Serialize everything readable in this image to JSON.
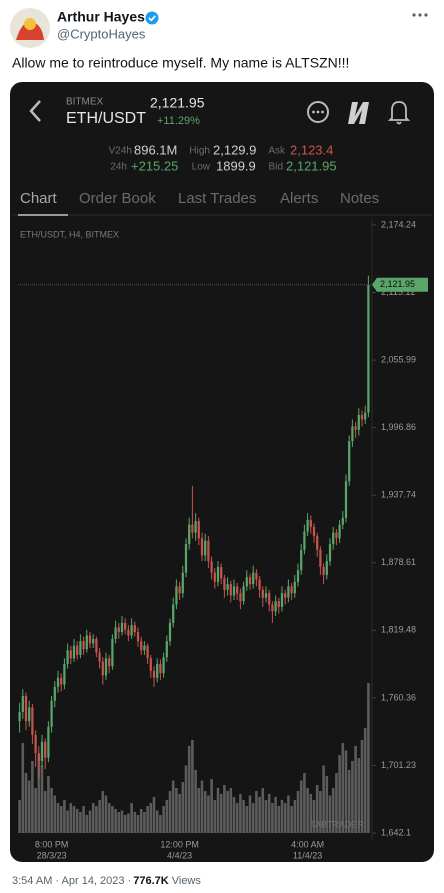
{
  "tweet": {
    "name": "Arthur Hayes",
    "handle": "@CryptoHayes",
    "text": "Allow me to reintroduce myself. My name is ALTSZN!!!",
    "timestamp": "3:54 AM · Apr 14, 2023 · ",
    "views": "776.7K",
    "views_label": "Views"
  },
  "app": {
    "exchange": "BITMEX",
    "pair": "ETH/USDT",
    "price": "2,121.95",
    "change": "+11.29%",
    "stats": {
      "v24h_label": "V24h",
      "v24h": "896.1M",
      "high_label": "High",
      "high": "2,129.9",
      "ask_label": "Ask",
      "ask": "2,123.4",
      "d24h_label": "24h",
      "d24h": "+215.25",
      "low_label": "Low",
      "low": "1899.9",
      "bid_label": "Bid",
      "bid": "2,121.95"
    },
    "tabs": [
      "Chart",
      "Order Book",
      "Last Trades",
      "Alerts",
      "Notes"
    ],
    "watermark": "TABTRADER"
  },
  "chart_data": {
    "type": "candlestick",
    "subtitle": "ETH/USDT, H4, BITMEX",
    "up_color": "#5aa66a",
    "down_color": "#c9544e",
    "volume_color": "#5c5c5c",
    "ylim": [
      1642.1,
      2174.24
    ],
    "yticks": [
      {
        "value": 2174.24,
        "label": "2,174.24"
      },
      {
        "value": 2115.12,
        "label": "2,115.12"
      },
      {
        "value": 2055.99,
        "label": "2,055.99"
      },
      {
        "value": 1996.86,
        "label": "1,996.86"
      },
      {
        "value": 1937.74,
        "label": "1,937.74"
      },
      {
        "value": 1878.61,
        "label": "1,878.61"
      },
      {
        "value": 1819.48,
        "label": "1,819.48"
      },
      {
        "value": 1760.36,
        "label": "1,760.36"
      },
      {
        "value": 1701.23,
        "label": "1,701.23"
      },
      {
        "value": 1642.1,
        "label": "1,642.1"
      }
    ],
    "last_price": {
      "value": 2121.95,
      "label": "2,121.95"
    },
    "categories": [
      null,
      null,
      null,
      null,
      null,
      null,
      null,
      null,
      null,
      null,
      {
        "time": "8:00 PM",
        "date": "28/3/23"
      },
      null,
      null,
      null,
      null,
      null,
      null,
      null,
      null,
      null,
      null,
      null,
      null,
      null,
      null,
      null,
      null,
      null,
      null,
      null,
      null,
      null,
      null,
      null,
      null,
      null,
      null,
      null,
      null,
      null,
      null,
      null,
      null,
      null,
      null,
      null,
      null,
      null,
      null,
      null,
      {
        "time": "12:00 PM",
        "date": "4/4/23"
      },
      null,
      null,
      null,
      null,
      null,
      null,
      null,
      null,
      null,
      null,
      null,
      null,
      null,
      null,
      null,
      null,
      null,
      null,
      null,
      null,
      null,
      null,
      null,
      null,
      null,
      null,
      null,
      null,
      null,
      null,
      null,
      null,
      null,
      null,
      null,
      null,
      null,
      null,
      null,
      {
        "time": "4:00 AM",
        "date": "11/4/23"
      },
      null,
      null,
      null,
      null,
      null,
      null,
      null,
      null,
      null,
      null,
      null,
      null,
      null,
      null,
      null,
      null,
      null,
      null,
      null
    ],
    "candles": [
      [
        1740,
        1756,
        1730,
        1748
      ],
      [
        1748,
        1768,
        1742,
        1762
      ],
      [
        1762,
        1765,
        1732,
        1740
      ],
      [
        1740,
        1758,
        1735,
        1752
      ],
      [
        1752,
        1755,
        1720,
        1728
      ],
      [
        1728,
        1732,
        1700,
        1712
      ],
      [
        1712,
        1718,
        1690,
        1705
      ],
      [
        1705,
        1728,
        1700,
        1722
      ],
      [
        1722,
        1725,
        1698,
        1708
      ],
      [
        1708,
        1740,
        1704,
        1735
      ],
      [
        1735,
        1762,
        1730,
        1758
      ],
      [
        1758,
        1775,
        1752,
        1770
      ],
      [
        1770,
        1784,
        1765,
        1778
      ],
      [
        1778,
        1782,
        1766,
        1772
      ],
      [
        1772,
        1795,
        1768,
        1790
      ],
      [
        1790,
        1808,
        1786,
        1802
      ],
      [
        1802,
        1806,
        1790,
        1795
      ],
      [
        1795,
        1812,
        1792,
        1806
      ],
      [
        1806,
        1810,
        1794,
        1798
      ],
      [
        1798,
        1816,
        1795,
        1810
      ],
      [
        1810,
        1814,
        1798,
        1803
      ],
      [
        1803,
        1820,
        1800,
        1815
      ],
      [
        1815,
        1818,
        1804,
        1808
      ],
      [
        1808,
        1816,
        1804,
        1812
      ],
      [
        1812,
        1814,
        1796,
        1800
      ],
      [
        1800,
        1804,
        1786,
        1792
      ],
      [
        1792,
        1796,
        1772,
        1780
      ],
      [
        1780,
        1800,
        1776,
        1795
      ],
      [
        1795,
        1798,
        1782,
        1788
      ],
      [
        1788,
        1816,
        1785,
        1812
      ],
      [
        1812,
        1828,
        1808,
        1822
      ],
      [
        1822,
        1826,
        1812,
        1818
      ],
      [
        1818,
        1832,
        1815,
        1826
      ],
      [
        1826,
        1830,
        1816,
        1820
      ],
      [
        1820,
        1824,
        1810,
        1815
      ],
      [
        1815,
        1830,
        1812,
        1824
      ],
      [
        1824,
        1827,
        1814,
        1818
      ],
      [
        1818,
        1822,
        1805,
        1810
      ],
      [
        1810,
        1814,
        1798,
        1802
      ],
      [
        1802,
        1810,
        1798,
        1806
      ],
      [
        1806,
        1808,
        1790,
        1795
      ],
      [
        1795,
        1798,
        1778,
        1784
      ],
      [
        1784,
        1788,
        1770,
        1778
      ],
      [
        1778,
        1795,
        1774,
        1790
      ],
      [
        1790,
        1794,
        1776,
        1782
      ],
      [
        1782,
        1800,
        1778,
        1796
      ],
      [
        1796,
        1815,
        1792,
        1810
      ],
      [
        1810,
        1830,
        1806,
        1826
      ],
      [
        1826,
        1848,
        1822,
        1842
      ],
      [
        1842,
        1864,
        1838,
        1858
      ],
      [
        1858,
        1862,
        1846,
        1852
      ],
      [
        1852,
        1876,
        1848,
        1870
      ],
      [
        1870,
        1900,
        1866,
        1895
      ],
      [
        1895,
        1918,
        1890,
        1912
      ],
      [
        1912,
        1946,
        1900,
        1905
      ],
      [
        1905,
        1922,
        1898,
        1915
      ],
      [
        1915,
        1918,
        1894,
        1900
      ],
      [
        1900,
        1905,
        1880,
        1885
      ],
      [
        1885,
        1904,
        1880,
        1898
      ],
      [
        1898,
        1902,
        1874,
        1880
      ],
      [
        1880,
        1884,
        1864,
        1870
      ],
      [
        1870,
        1874,
        1856,
        1862
      ],
      [
        1862,
        1880,
        1858,
        1875
      ],
      [
        1875,
        1878,
        1860,
        1865
      ],
      [
        1865,
        1868,
        1848,
        1855
      ],
      [
        1855,
        1866,
        1850,
        1860
      ],
      [
        1860,
        1863,
        1844,
        1850
      ],
      [
        1850,
        1864,
        1846,
        1858
      ],
      [
        1858,
        1861,
        1846,
        1852
      ],
      [
        1852,
        1856,
        1838,
        1845
      ],
      [
        1845,
        1862,
        1842,
        1858
      ],
      [
        1858,
        1872,
        1854,
        1866
      ],
      [
        1866,
        1869,
        1855,
        1860
      ],
      [
        1860,
        1876,
        1856,
        1870
      ],
      [
        1870,
        1873,
        1858,
        1864
      ],
      [
        1864,
        1867,
        1848,
        1855
      ],
      [
        1855,
        1858,
        1840,
        1848
      ],
      [
        1848,
        1858,
        1844,
        1852
      ],
      [
        1852,
        1855,
        1836,
        1842
      ],
      [
        1842,
        1845,
        1826,
        1836
      ],
      [
        1836,
        1850,
        1832,
        1845
      ],
      [
        1845,
        1848,
        1834,
        1840
      ],
      [
        1840,
        1858,
        1836,
        1852
      ],
      [
        1852,
        1855,
        1842,
        1848
      ],
      [
        1848,
        1864,
        1844,
        1858
      ],
      [
        1858,
        1861,
        1846,
        1852
      ],
      [
        1852,
        1868,
        1848,
        1862
      ],
      [
        1862,
        1878,
        1858,
        1872
      ],
      [
        1872,
        1895,
        1868,
        1890
      ],
      [
        1890,
        1912,
        1886,
        1906
      ],
      [
        1906,
        1922,
        1902,
        1916
      ],
      [
        1916,
        1920,
        1904,
        1910
      ],
      [
        1910,
        1913,
        1896,
        1902
      ],
      [
        1902,
        1905,
        1884,
        1890
      ],
      [
        1890,
        1893,
        1868,
        1875
      ],
      [
        1875,
        1878,
        1860,
        1868
      ],
      [
        1868,
        1886,
        1864,
        1880
      ],
      [
        1880,
        1900,
        1876,
        1895
      ],
      [
        1895,
        1910,
        1890,
        1905
      ],
      [
        1905,
        1908,
        1894,
        1900
      ],
      [
        1900,
        1916,
        1896,
        1912
      ],
      [
        1912,
        1924,
        1908,
        1918
      ],
      [
        1918,
        1956,
        1914,
        1950
      ],
      [
        1950,
        1990,
        1946,
        1985
      ],
      [
        1985,
        2004,
        1980,
        1998
      ],
      [
        1998,
        2002,
        1988,
        1995
      ],
      [
        1995,
        2014,
        1990,
        2008
      ],
      [
        2008,
        2012,
        1998,
        2004
      ],
      [
        2004,
        2016,
        2000,
        2010
      ],
      [
        2010,
        2129.9,
        2006,
        2121.95
      ]
    ],
    "volumes": [
      22,
      60,
      40,
      35,
      48,
      30,
      52,
      45,
      28,
      38,
      30,
      25,
      20,
      18,
      22,
      15,
      20,
      18,
      16,
      14,
      18,
      12,
      15,
      20,
      18,
      22,
      28,
      25,
      20,
      18,
      16,
      14,
      15,
      12,
      13,
      20,
      14,
      12,
      16,
      14,
      18,
      20,
      24,
      15,
      12,
      18,
      22,
      28,
      35,
      30,
      26,
      34,
      45,
      58,
      62,
      42,
      30,
      35,
      28,
      25,
      36,
      22,
      30,
      26,
      32,
      28,
      30,
      24,
      20,
      26,
      22,
      18,
      25,
      20,
      28,
      24,
      30,
      22,
      26,
      20,
      24,
      18,
      22,
      20,
      25,
      18,
      22,
      28,
      35,
      40,
      30,
      26,
      22,
      32,
      28,
      45,
      38,
      25,
      30,
      40,
      52,
      60,
      55,
      42,
      48,
      58,
      50,
      62,
      70,
      100
    ]
  }
}
